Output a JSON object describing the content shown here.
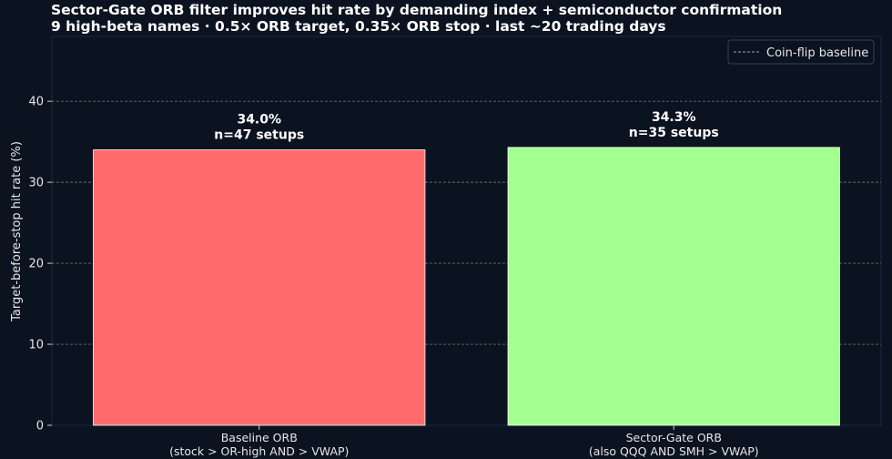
{
  "chart_data": {
    "type": "bar",
    "title": "Sector-Gate ORB filter improves hit rate by demanding index + semiconductor confirmation",
    "subtitle": "9 high-beta names · 0.5× ORB target, 0.35× ORB stop · last ~20 trading days",
    "ylabel": "Target-before-stop hit rate (%)",
    "xlabel": "",
    "ylim": [
      0,
      48
    ],
    "yticks": [
      0,
      10,
      20,
      30,
      40
    ],
    "grid": true,
    "legend_position": "top-right",
    "categories": [
      [
        "Baseline ORB",
        "(stock > OR-high AND > VWAP)"
      ],
      [
        "Sector-Gate ORB",
        "(also QQQ AND SMH > VWAP)"
      ]
    ],
    "values": [
      34.0,
      34.3
    ],
    "bar_labels": [
      [
        "34.0%",
        "n=47 setups"
      ],
      [
        "34.3%",
        "n=35 setups"
      ]
    ],
    "colors": [
      "#ff6b6b",
      "#a3ff8f"
    ],
    "legend": [
      {
        "label": "Coin-flip baseline",
        "style": "dashed"
      }
    ]
  }
}
